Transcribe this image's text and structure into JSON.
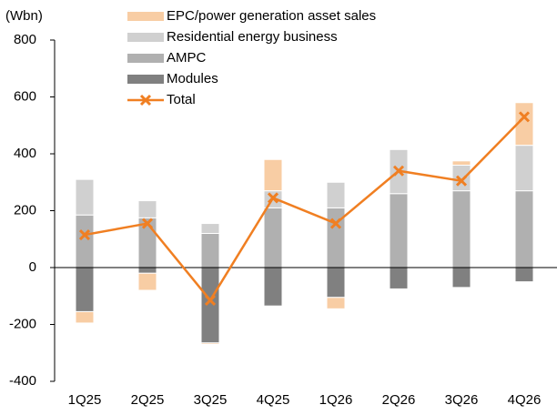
{
  "chart_data": {
    "type": "bar",
    "stacked": true,
    "y_label": "(Wbn)",
    "categories": [
      "1Q25",
      "2Q25",
      "3Q25",
      "4Q25",
      "1Q26",
      "2Q26",
      "3Q26",
      "4Q26"
    ],
    "series": [
      {
        "name": "EPC/power generation asset sales",
        "color": "#f8cda4",
        "values": [
          -40,
          -60,
          -5,
          110,
          -40,
          0,
          15,
          150
        ]
      },
      {
        "name": "Residential energy business",
        "color": "#d0d0d0",
        "values": [
          125,
          60,
          35,
          60,
          90,
          155,
          90,
          160
        ]
      },
      {
        "name": "AMPC",
        "color": "#b0b0b0",
        "values": [
          185,
          175,
          120,
          210,
          210,
          260,
          270,
          270
        ]
      },
      {
        "name": "Modules",
        "color": "#808080",
        "values": [
          -155,
          -20,
          -265,
          -135,
          -105,
          -75,
          -70,
          -50
        ]
      },
      {
        "name": "Total",
        "type": "line",
        "color": "#f07f22",
        "values": [
          115,
          155,
          -115,
          245,
          155,
          340,
          305,
          530
        ]
      }
    ],
    "ylim": [
      -400,
      800
    ],
    "yticks": [
      -400,
      -200,
      0,
      200,
      400,
      600,
      800
    ]
  }
}
